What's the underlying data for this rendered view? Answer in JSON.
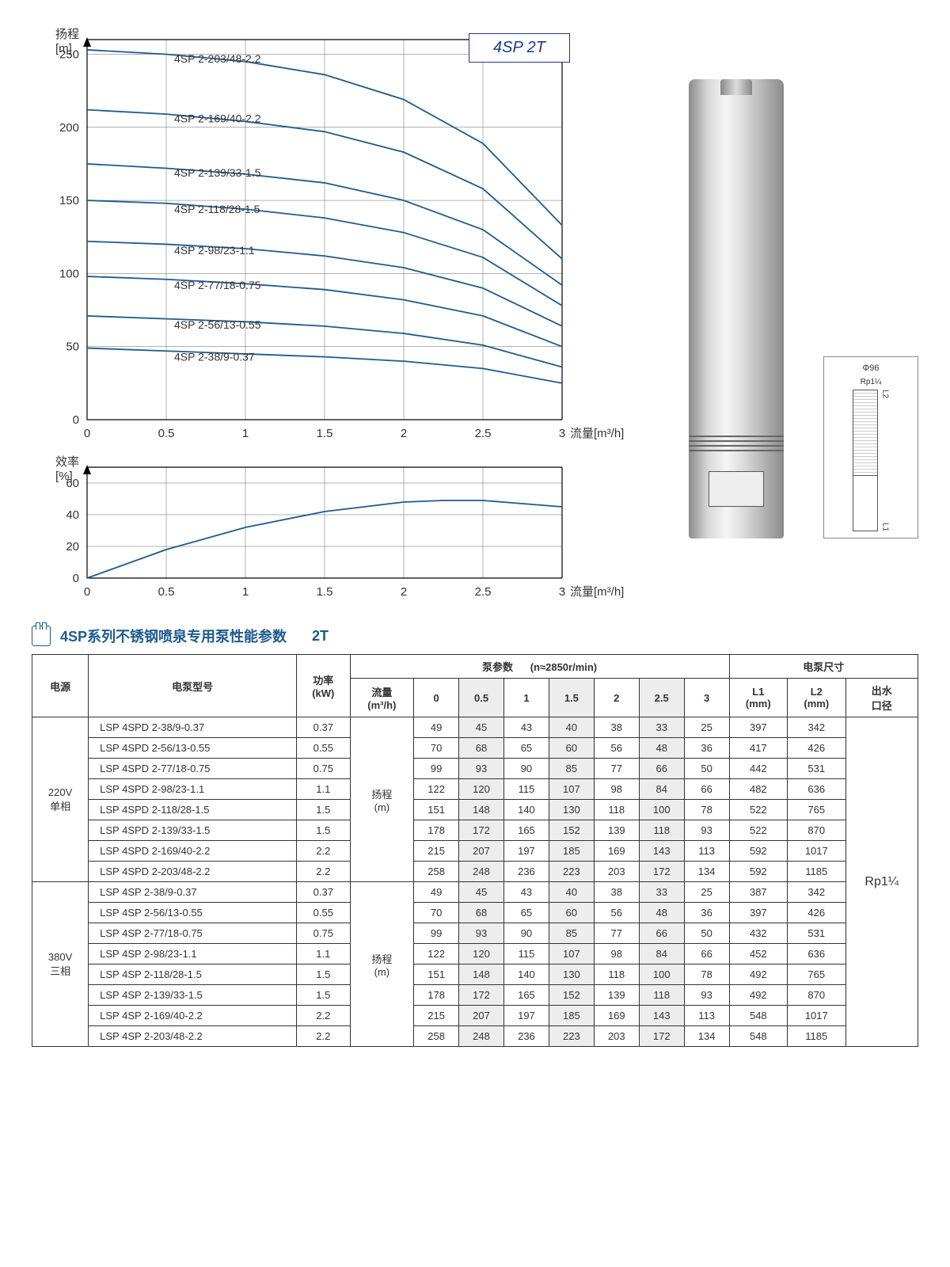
{
  "chart": {
    "title": "4SP 2T",
    "head": {
      "ylabel_top": "扬程",
      "ylabel_unit": "[m]",
      "xlabel": "流量[m³/h]",
      "xlim": [
        0,
        3
      ],
      "ylim": [
        0,
        260
      ],
      "xticks": [
        0,
        0.5,
        1,
        1.5,
        2,
        2.5,
        3
      ],
      "yticks": [
        0,
        50,
        100,
        150,
        200,
        250
      ],
      "line_color": "#1e5a8e",
      "grid_color": "#666666",
      "curves": [
        {
          "label": "4SP 2-203/48-2.2",
          "pts": [
            [
              0,
              253
            ],
            [
              0.5,
              250
            ],
            [
              1,
              245
            ],
            [
              1.5,
              236
            ],
            [
              2,
              219
            ],
            [
              2.5,
              189
            ],
            [
              3,
              133
            ]
          ]
        },
        {
          "label": "4SP 2-169/40-2.2",
          "pts": [
            [
              0,
              212
            ],
            [
              0.5,
              209
            ],
            [
              1,
              204
            ],
            [
              1.5,
              197
            ],
            [
              2,
              183
            ],
            [
              2.5,
              158
            ],
            [
              3,
              110
            ]
          ]
        },
        {
          "label": "4SP 2-139/33-1.5",
          "pts": [
            [
              0,
              175
            ],
            [
              0.5,
              172
            ],
            [
              1,
              168
            ],
            [
              1.5,
              162
            ],
            [
              2,
              150
            ],
            [
              2.5,
              130
            ],
            [
              3,
              92
            ]
          ]
        },
        {
          "label": "4SP 2-118/28-1.5",
          "pts": [
            [
              0,
              150
            ],
            [
              0.5,
              148
            ],
            [
              1,
              144
            ],
            [
              1.5,
              138
            ],
            [
              2,
              128
            ],
            [
              2.5,
              111
            ],
            [
              3,
              78
            ]
          ]
        },
        {
          "label": "4SP 2-98/23-1.1",
          "pts": [
            [
              0,
              122
            ],
            [
              0.5,
              120
            ],
            [
              1,
              117
            ],
            [
              1.5,
              112
            ],
            [
              2,
              104
            ],
            [
              2.5,
              90
            ],
            [
              3,
              64
            ]
          ]
        },
        {
          "label": "4SP 2-77/18-0.75",
          "pts": [
            [
              0,
              98
            ],
            [
              0.5,
              96
            ],
            [
              1,
              93
            ],
            [
              1.5,
              89
            ],
            [
              2,
              82
            ],
            [
              2.5,
              71
            ],
            [
              3,
              50
            ]
          ]
        },
        {
          "label": "4SP 2-56/13-0.55",
          "pts": [
            [
              0,
              71
            ],
            [
              0.5,
              69
            ],
            [
              1,
              67
            ],
            [
              1.5,
              64
            ],
            [
              2,
              59
            ],
            [
              2.5,
              51
            ],
            [
              3,
              36
            ]
          ]
        },
        {
          "label": "4SP 2-38/9-0.37",
          "pts": [
            [
              0,
              49
            ],
            [
              0.5,
              47
            ],
            [
              1,
              45
            ],
            [
              1.5,
              43
            ],
            [
              2,
              40
            ],
            [
              2.5,
              35
            ],
            [
              3,
              25
            ]
          ]
        }
      ]
    },
    "eff": {
      "ylabel_top": "效率",
      "ylabel_unit": "[%]",
      "xlabel": "流量[m³/h]",
      "xlim": [
        0,
        3
      ],
      "ylim": [
        0,
        70
      ],
      "xticks": [
        0,
        0.5,
        1,
        1.5,
        2,
        2.5,
        3
      ],
      "yticks": [
        0,
        20,
        40,
        60
      ],
      "curve": {
        "pts": [
          [
            0,
            0
          ],
          [
            0.5,
            18
          ],
          [
            1,
            32
          ],
          [
            1.5,
            42
          ],
          [
            2,
            48
          ],
          [
            2.25,
            49
          ],
          [
            2.5,
            49
          ],
          [
            3,
            45
          ]
        ]
      }
    }
  },
  "dim_diagram": {
    "phi": "Φ96",
    "rp": "Rp1¼",
    "l1": "L1",
    "l2": "L2"
  },
  "section_title": "4SP系列不锈钢喷泉专用泵性能参数",
  "section_suffix": "2T",
  "table": {
    "headers": {
      "power_source": "电源",
      "model": "电泵型号",
      "kw": "功率\n(kW)",
      "pump_params": "泵参数",
      "rpm": "(n≈2850r/min)",
      "flow_header": "流量\n(m³/h)",
      "head_header": "扬程\n(m)",
      "flow_cols": [
        "0",
        "0.5",
        "1",
        "1.5",
        "2",
        "2.5",
        "3"
      ],
      "dims": "电泵尺寸",
      "l1": "L1\n(mm)",
      "l2": "L2\n(mm)",
      "outlet": "出水\n口径"
    },
    "outlet_value": "Rp1¼",
    "groups": [
      {
        "label": "220V\n单相",
        "rows": [
          {
            "model": "LSP 4SPD 2-38/9-0.37",
            "kw": "0.37",
            "vals": [
              49,
              45,
              43,
              40,
              38,
              33,
              25
            ],
            "l1": 397,
            "l2": 342
          },
          {
            "model": "LSP 4SPD 2-56/13-0.55",
            "kw": "0.55",
            "vals": [
              70,
              68,
              65,
              60,
              56,
              48,
              36
            ],
            "l1": 417,
            "l2": 426
          },
          {
            "model": "LSP 4SPD 2-77/18-0.75",
            "kw": "0.75",
            "vals": [
              99,
              93,
              90,
              85,
              77,
              66,
              50
            ],
            "l1": 442,
            "l2": 531
          },
          {
            "model": "LSP 4SPD 2-98/23-1.1",
            "kw": "1.1",
            "vals": [
              122,
              120,
              115,
              107,
              98,
              84,
              66
            ],
            "l1": 482,
            "l2": 636
          },
          {
            "model": "LSP 4SPD 2-118/28-1.5",
            "kw": "1.5",
            "vals": [
              151,
              148,
              140,
              130,
              118,
              100,
              78
            ],
            "l1": 522,
            "l2": 765
          },
          {
            "model": "LSP 4SPD 2-139/33-1.5",
            "kw": "1.5",
            "vals": [
              178,
              172,
              165,
              152,
              139,
              118,
              93
            ],
            "l1": 522,
            "l2": 870
          },
          {
            "model": "LSP 4SPD 2-169/40-2.2",
            "kw": "2.2",
            "vals": [
              215,
              207,
              197,
              185,
              169,
              143,
              113
            ],
            "l1": 592,
            "l2": 1017
          },
          {
            "model": "LSP 4SPD 2-203/48-2.2",
            "kw": "2.2",
            "vals": [
              258,
              248,
              236,
              223,
              203,
              172,
              134
            ],
            "l1": 592,
            "l2": 1185
          }
        ]
      },
      {
        "label": "380V\n三相",
        "rows": [
          {
            "model": "LSP 4SP 2-38/9-0.37",
            "kw": "0.37",
            "vals": [
              49,
              45,
              43,
              40,
              38,
              33,
              25
            ],
            "l1": 387,
            "l2": 342
          },
          {
            "model": "LSP 4SP 2-56/13-0.55",
            "kw": "0.55",
            "vals": [
              70,
              68,
              65,
              60,
              56,
              48,
              36
            ],
            "l1": 397,
            "l2": 426
          },
          {
            "model": "LSP 4SP 2-77/18-0.75",
            "kw": "0.75",
            "vals": [
              99,
              93,
              90,
              85,
              77,
              66,
              50
            ],
            "l1": 432,
            "l2": 531
          },
          {
            "model": "LSP 4SP 2-98/23-1.1",
            "kw": "1.1",
            "vals": [
              122,
              120,
              115,
              107,
              98,
              84,
              66
            ],
            "l1": 452,
            "l2": 636
          },
          {
            "model": "LSP 4SP 2-118/28-1.5",
            "kw": "1.5",
            "vals": [
              151,
              148,
              140,
              130,
              118,
              100,
              78
            ],
            "l1": 492,
            "l2": 765
          },
          {
            "model": "LSP 4SP 2-139/33-1.5",
            "kw": "1.5",
            "vals": [
              178,
              172,
              165,
              152,
              139,
              118,
              93
            ],
            "l1": 492,
            "l2": 870
          },
          {
            "model": "LSP 4SP 2-169/40-2.2",
            "kw": "2.2",
            "vals": [
              215,
              207,
              197,
              185,
              169,
              143,
              113
            ],
            "l1": 548,
            "l2": 1017
          },
          {
            "model": "LSP 4SP 2-203/48-2.2",
            "kw": "2.2",
            "vals": [
              258,
              248,
              236,
              223,
              203,
              172,
              134
            ],
            "l1": 548,
            "l2": 1185
          }
        ]
      }
    ]
  }
}
